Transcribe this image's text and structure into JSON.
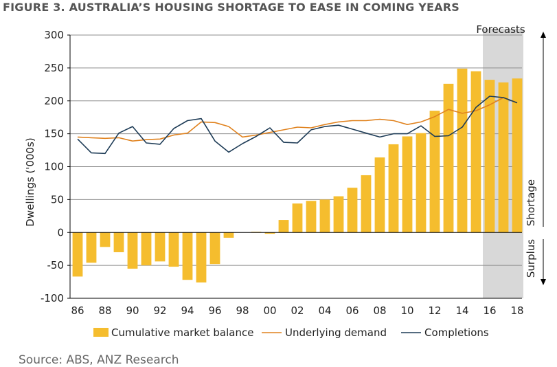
{
  "figure_title": "FIGURE 3. AUSTRALIA’S HOUSING SHORTAGE TO EASE IN COMING YEARS",
  "source": "Source: ABS, ANZ Research",
  "forecast_label": "Forecasts",
  "side_labels": {
    "shortage": "Shortage",
    "surplus": "Surplus"
  },
  "colors": {
    "bars": "#f5bd2e",
    "demand": "#e0821e",
    "completions": "#1d3b56",
    "forecast_band": "#d8d8d8",
    "grid": "#8c8c8c"
  },
  "chart_data": {
    "type": "bar",
    "title": "AUSTRALIA’S HOUSING SHORTAGE TO EASE IN COMING YEARS",
    "ylabel": "Dwellings ('000s)",
    "xlabel": "",
    "ylim": [
      -100,
      300
    ],
    "yticks": [
      -100,
      -50,
      0,
      50,
      100,
      150,
      200,
      250,
      300
    ],
    "years": [
      1986,
      1987,
      1988,
      1989,
      1990,
      1991,
      1992,
      1993,
      1994,
      1995,
      1996,
      1997,
      1998,
      1999,
      2000,
      2001,
      2002,
      2003,
      2004,
      2005,
      2006,
      2007,
      2008,
      2009,
      2010,
      2011,
      2012,
      2013,
      2014,
      2015,
      2016,
      2017,
      2018
    ],
    "xtick_labels": [
      "86",
      "88",
      "90",
      "92",
      "94",
      "96",
      "98",
      "00",
      "02",
      "04",
      "06",
      "08",
      "10",
      "12",
      "14",
      "16",
      "18"
    ],
    "forecast_start": 2016,
    "series": [
      {
        "name": "Cumulative market balance",
        "kind": "bar",
        "values": [
          -67,
          -46,
          -22,
          -30,
          -55,
          -50,
          -44,
          -52,
          -72,
          -76,
          -48,
          -8,
          0,
          1,
          -2,
          19,
          44,
          48,
          50,
          55,
          68,
          87,
          114,
          134,
          146,
          151,
          185,
          226,
          249,
          245,
          232,
          228,
          234
        ]
      },
      {
        "name": "Underlying demand",
        "kind": "line",
        "values": [
          145,
          144,
          143,
          144,
          139,
          141,
          142,
          148,
          151,
          168,
          167,
          161,
          145,
          148,
          152,
          156,
          160,
          159,
          164,
          168,
          170,
          170,
          172,
          170,
          164,
          168,
          176,
          187,
          181,
          185,
          194,
          205,
          197
        ]
      },
      {
        "name": "Completions",
        "kind": "line",
        "values": [
          142,
          121,
          120,
          151,
          161,
          136,
          134,
          158,
          170,
          173,
          139,
          122,
          135,
          146,
          159,
          137,
          136,
          156,
          161,
          163,
          157,
          151,
          145,
          150,
          150,
          162,
          146,
          147,
          160,
          190,
          207,
          205,
          197
        ]
      }
    ]
  }
}
